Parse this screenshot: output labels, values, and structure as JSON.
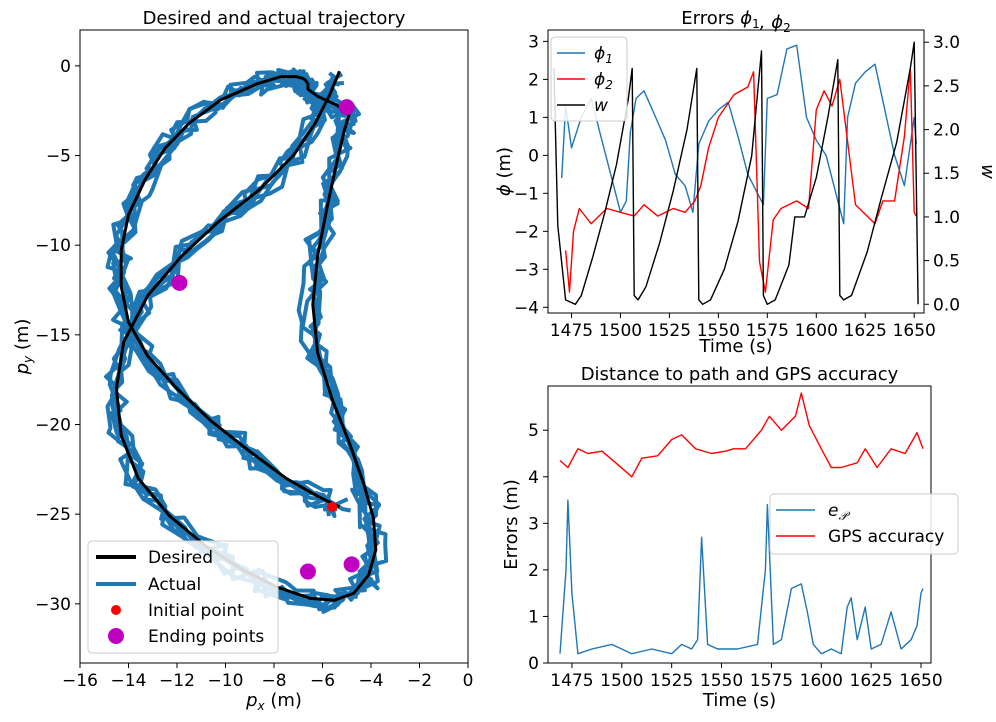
{
  "chart_data": [
    {
      "type": "line",
      "title": "Desired and actual trajectory",
      "xlabel": "p_x (m)",
      "ylabel": "p_y (m)",
      "xlim": [
        -16,
        0
      ],
      "ylim": [
        -33.3,
        2
      ],
      "xticks": [
        -16,
        -14,
        -12,
        -10,
        -8,
        -6,
        -4,
        -2,
        0
      ],
      "yticks": [
        0,
        -5,
        -10,
        -15,
        -20,
        -25,
        -30
      ],
      "grid": false,
      "legend_position": "bottom-left",
      "series": [
        {
          "name": "Desired",
          "color": "#000000",
          "x": [
            -5.3,
            -6.2,
            -7.5,
            -9,
            -10.6,
            -12,
            -13.2,
            -14,
            -14.3,
            -14.3,
            -14,
            -13.3,
            -12.5,
            -11.5,
            -10.2,
            -8.7,
            -7.7,
            -7.1,
            -6.8,
            -6.7,
            -6.6,
            -6.6,
            -6.2,
            -5.4,
            -4.9,
            -5.1,
            -5.4,
            -5.8,
            -6.2,
            -6.4,
            -6.2,
            -5.6,
            -4.9,
            -4.3,
            -3.9,
            -3.8,
            -4.1,
            -4.7,
            -5.5,
            -6.5,
            -7.8,
            -9.3,
            -10.8,
            -12.3,
            -13.6,
            -14.3,
            -14.5,
            -14.2,
            -13.2,
            -11.8,
            -10.3,
            -8.6,
            -7.2,
            -6.3,
            -5.7,
            -5.3
          ],
          "y": [
            -24.6,
            -24.0,
            -23.0,
            -21.5,
            -19.8,
            -18.0,
            -16.2,
            -14.3,
            -12.3,
            -10.3,
            -8.3,
            -6.3,
            -4.6,
            -3.2,
            -1.9,
            -1.0,
            -0.6,
            -0.6,
            -0.7,
            -0.8,
            -1.0,
            -1.3,
            -1.7,
            -2.2,
            -2.7,
            -3.6,
            -5.3,
            -7.8,
            -10.6,
            -13.3,
            -16.0,
            -18.6,
            -21.0,
            -23.3,
            -25.2,
            -27.0,
            -28.4,
            -29.4,
            -29.8,
            -29.7,
            -29.1,
            -28.1,
            -26.8,
            -25.1,
            -23.0,
            -20.6,
            -18.0,
            -15.4,
            -12.8,
            -10.6,
            -8.7,
            -6.9,
            -5.0,
            -3.2,
            -1.6,
            -0.3
          ]
        },
        {
          "name": "Actual",
          "color": "#1f77b4"
        },
        {
          "name": "Initial point",
          "color": "#ff0000",
          "points": [
            {
              "x": -5.6,
              "y": -24.6
            }
          ]
        },
        {
          "name": "Ending points",
          "color": "#c000c0",
          "points": [
            {
              "x": -5.0,
              "y": -2.3
            },
            {
              "x": -11.9,
              "y": -12.1
            },
            {
              "x": -6.6,
              "y": -28.2
            },
            {
              "x": -4.8,
              "y": -27.8
            }
          ]
        }
      ]
    },
    {
      "type": "line",
      "title": "Errors $\\phi_1, \\phi_2$",
      "xlabel": "Time (s)",
      "ylabel": "$\\phi$ (m)",
      "y2label": "w",
      "xlim": [
        1463,
        1655
      ],
      "ylim": [
        -4.15,
        3.3
      ],
      "y2lim": [
        -0.1,
        3.14
      ],
      "xticks": [
        1475,
        1500,
        1525,
        1550,
        1575,
        1600,
        1625,
        1650
      ],
      "yticks": [
        -4,
        -3,
        -2,
        -1,
        0,
        1,
        2,
        3
      ],
      "y2ticks": [
        0.0,
        0.5,
        1.0,
        1.5,
        2.0,
        2.5,
        3.0
      ],
      "grid": false,
      "legend_position": "top-left",
      "series": [
        {
          "name": "$\\phi_1$",
          "color": "#1f77b4",
          "x": [
            1470,
            1472,
            1475,
            1480,
            1485,
            1490,
            1495,
            1500,
            1503,
            1505,
            1508,
            1512,
            1518,
            1523,
            1528,
            1533,
            1537,
            1540,
            1545,
            1550,
            1555,
            1560,
            1565,
            1570,
            1573,
            1575,
            1580,
            1585,
            1590,
            1595,
            1600,
            1605,
            1610,
            1614,
            1616,
            1620,
            1625,
            1630,
            1635,
            1640,
            1645,
            1650,
            1651
          ],
          "y": [
            -0.6,
            1.3,
            0.2,
            1.0,
            1.5,
            0.5,
            -0.5,
            -1.5,
            -1.2,
            0.6,
            1.5,
            1.7,
            1.0,
            0.4,
            -0.5,
            -0.8,
            -1.5,
            0.3,
            0.9,
            1.2,
            1.4,
            0.5,
            -0.5,
            -1.0,
            -1.3,
            1.5,
            1.6,
            2.8,
            2.9,
            1.0,
            0.4,
            0.0,
            -1.0,
            -1.8,
            1.0,
            1.9,
            2.2,
            2.4,
            1.2,
            0.0,
            -0.8,
            1.0,
            0.3
          ]
        },
        {
          "name": "$\\phi_2$",
          "color": "#ff0000",
          "x": [
            1472,
            1474,
            1476,
            1479,
            1485,
            1493,
            1500,
            1507,
            1512,
            1519,
            1527,
            1533,
            1538,
            1541,
            1545,
            1550,
            1558,
            1565,
            1568,
            1571,
            1574,
            1578,
            1582,
            1590,
            1596,
            1600,
            1604,
            1608,
            1612,
            1620,
            1630,
            1634,
            1640,
            1645,
            1648,
            1650,
            1651
          ],
          "y": [
            -2.5,
            -3.6,
            -2.0,
            -1.4,
            -1.8,
            -1.4,
            -1.5,
            -1.6,
            -1.3,
            -1.6,
            -1.4,
            -1.5,
            -1.2,
            -0.8,
            0.2,
            1.0,
            1.6,
            1.8,
            2.2,
            -2.8,
            -3.6,
            -1.7,
            -1.4,
            -1.2,
            -1.4,
            1.2,
            1.7,
            1.3,
            2.0,
            -1.3,
            -1.8,
            -1.2,
            -1.2,
            0.5,
            2.3,
            -1.5,
            -1.6
          ]
        },
        {
          "name": "w",
          "axis": "right",
          "color": "#000000",
          "x": [
            1466,
            1468,
            1472,
            1477,
            1480,
            1486,
            1492,
            1498,
            1504,
            1506,
            1507,
            1509,
            1513,
            1520,
            1527,
            1534,
            1539,
            1540,
            1542,
            1546,
            1553,
            1560,
            1567,
            1572,
            1573,
            1575,
            1579,
            1586,
            1589,
            1594,
            1600,
            1606,
            1611,
            1612,
            1614,
            1618,
            1626,
            1633,
            1641,
            1648,
            1650,
            1652
          ],
          "y": [
            2.7,
            0.9,
            0.05,
            0.0,
            0.1,
            0.55,
            1.05,
            1.6,
            2.35,
            2.7,
            0.1,
            0.05,
            0.2,
            0.7,
            1.3,
            2.0,
            2.7,
            0.05,
            0.0,
            0.05,
            0.4,
            0.95,
            1.7,
            2.9,
            0.1,
            0.0,
            0.05,
            0.45,
            1.0,
            1.0,
            1.45,
            2.15,
            2.8,
            0.1,
            0.05,
            0.1,
            0.6,
            1.2,
            1.85,
            2.7,
            3.0,
            0.0
          ]
        }
      ]
    },
    {
      "type": "line",
      "title": "Distance to path and GPS accuracy",
      "xlabel": "Time (s)",
      "ylabel": "Errors (m)",
      "xlim": [
        1463,
        1655
      ],
      "ylim": [
        0,
        5.95
      ],
      "xticks": [
        1475,
        1500,
        1525,
        1550,
        1575,
        1600,
        1625,
        1650
      ],
      "yticks": [
        0,
        1,
        2,
        3,
        4,
        5
      ],
      "grid": false,
      "legend_position": "center-right",
      "series": [
        {
          "name": "$e_{\\mathcal{P}}$",
          "color": "#1f77b4",
          "x": [
            1469,
            1472,
            1473,
            1475,
            1478,
            1485,
            1495,
            1505,
            1515,
            1525,
            1530,
            1535,
            1538,
            1540,
            1543,
            1548,
            1558,
            1568,
            1572,
            1573,
            1576,
            1580,
            1585,
            1590,
            1593,
            1596,
            1600,
            1605,
            1610,
            1613,
            1615,
            1618,
            1622,
            1625,
            1630,
            1635,
            1640,
            1645,
            1648,
            1650,
            1651
          ],
          "y": [
            0.2,
            2.0,
            3.5,
            1.5,
            0.2,
            0.3,
            0.4,
            0.2,
            0.3,
            0.2,
            0.4,
            0.3,
            0.5,
            2.7,
            0.4,
            0.3,
            0.3,
            0.4,
            2.0,
            3.4,
            0.4,
            0.5,
            1.6,
            1.7,
            1.1,
            0.4,
            0.2,
            0.3,
            0.2,
            1.2,
            1.4,
            0.5,
            1.2,
            0.3,
            0.4,
            1.1,
            0.3,
            0.5,
            0.8,
            1.5,
            1.6
          ]
        },
        {
          "name": "GPS accuracy",
          "color": "#ff0000",
          "x": [
            1469,
            1473,
            1478,
            1483,
            1490,
            1497,
            1505,
            1510,
            1518,
            1525,
            1530,
            1537,
            1545,
            1552,
            1556,
            1562,
            1570,
            1574,
            1580,
            1587,
            1590,
            1594,
            1600,
            1605,
            1610,
            1618,
            1622,
            1628,
            1635,
            1642,
            1648,
            1651
          ],
          "y": [
            4.35,
            4.2,
            4.6,
            4.5,
            4.55,
            4.3,
            4.0,
            4.4,
            4.45,
            4.8,
            4.9,
            4.6,
            4.5,
            4.55,
            4.6,
            4.6,
            5.0,
            5.3,
            5.0,
            5.3,
            5.8,
            5.1,
            4.6,
            4.2,
            4.2,
            4.3,
            4.6,
            4.2,
            4.6,
            4.5,
            4.95,
            4.6
          ]
        }
      ]
    }
  ],
  "colors": {
    "blue": "#1f77b4",
    "red": "#ff0000",
    "black": "#000000",
    "magenta": "#c000c0"
  }
}
